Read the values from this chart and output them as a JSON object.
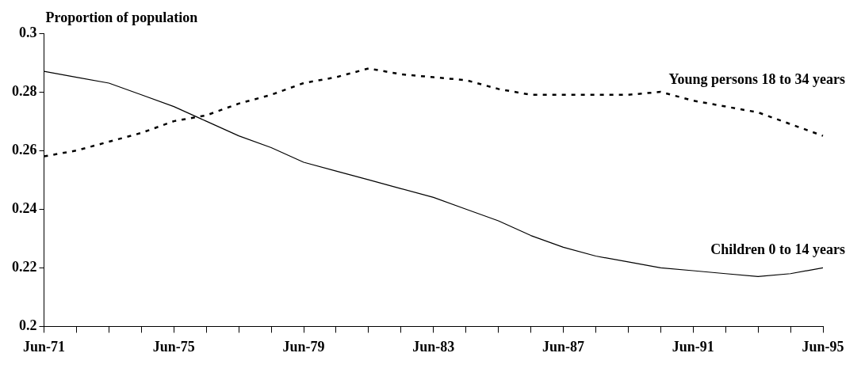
{
  "chart_data": {
    "type": "line",
    "ylabel": "Proportion of population",
    "categories": [
      "Jun-71",
      null,
      null,
      null,
      "Jun-75",
      null,
      null,
      null,
      "Jun-79",
      null,
      null,
      null,
      "Jun-83",
      null,
      null,
      null,
      "Jun-87",
      null,
      null,
      null,
      "Jun-91",
      null,
      null,
      null,
      "Jun-95"
    ],
    "series": [
      {
        "name": "Young persons 18 to 34 years",
        "color": "#000000",
        "line_style": "dashed",
        "values": [
          0.258,
          0.26,
          0.263,
          0.266,
          0.27,
          0.272,
          0.276,
          0.279,
          0.283,
          0.285,
          0.288,
          0.286,
          0.285,
          0.284,
          0.281,
          0.279,
          0.279,
          0.279,
          0.279,
          0.28,
          0.277,
          0.275,
          0.273,
          0.269,
          0.265
        ]
      },
      {
        "name": "Children 0 to 14 years",
        "color": "#000000",
        "line_style": "solid",
        "values": [
          0.287,
          0.285,
          0.283,
          0.279,
          0.275,
          0.27,
          0.265,
          0.261,
          0.256,
          0.253,
          0.25,
          0.247,
          0.244,
          0.24,
          0.236,
          0.231,
          0.227,
          0.224,
          0.222,
          0.22,
          0.219,
          0.218,
          0.217,
          0.218,
          0.22
        ]
      }
    ],
    "ylim": [
      0.2,
      0.3
    ],
    "yticks": [
      0.2,
      0.22,
      0.24,
      0.26,
      0.28,
      0.3
    ],
    "grid": false,
    "legend": false,
    "marker": "none"
  }
}
